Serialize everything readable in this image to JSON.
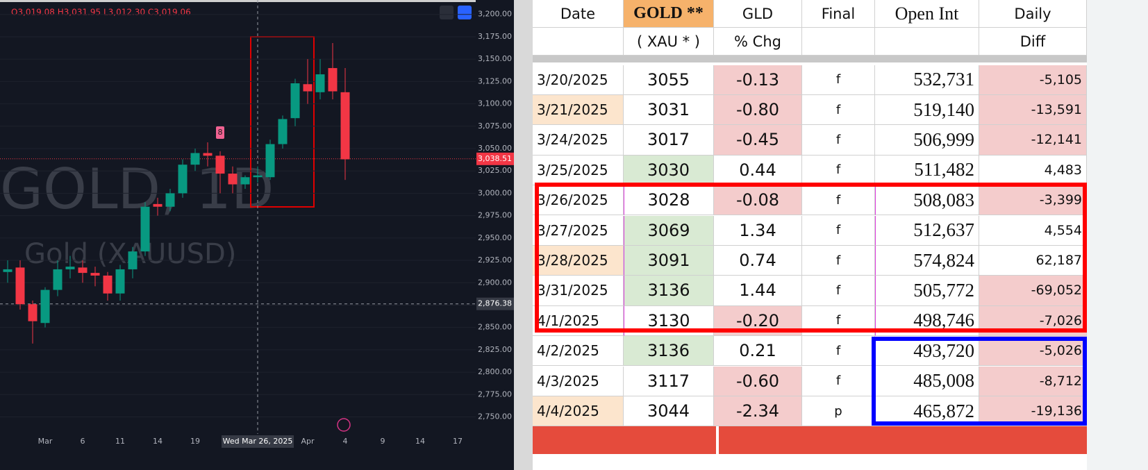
{
  "chart_data": {
    "type": "candlestick",
    "header": "O3,019.08 H3,031.95 L3,012.30 C3,019.06",
    "watermark": "GOLD, 1D",
    "watermark_sub": "Gold (XAUUSD)",
    "marker_label": "8",
    "crosshair_label": "Wed Mar 26, 2025",
    "crosshair_price": {
      "value": 2876.38,
      "label": "2,876.38"
    },
    "last_price": {
      "value": 3038.51,
      "label": "3,038.51"
    },
    "up_color": "#089981",
    "down_color": "#f23645",
    "categories": [
      null,
      null,
      null,
      "Mar",
      null,
      null,
      "6",
      null,
      null,
      "11",
      null,
      null,
      "14",
      null,
      null,
      "19",
      null,
      null,
      null,
      null,
      null,
      null,
      null,
      null,
      "Apr",
      null,
      null,
      "4",
      null,
      null,
      "9",
      null,
      null,
      "14",
      null,
      null,
      "17",
      null
    ],
    "open": [
      2912,
      2917,
      2876,
      2855,
      2892,
      2915,
      2917,
      2911,
      2908,
      2888,
      2915,
      2935,
      2988,
      2985,
      3000,
      3032,
      3045,
      3042,
      3022,
      3010,
      3018,
      3018,
      3055,
      3084,
      3122,
      3113,
      3140,
      3113,
      null,
      null,
      null,
      null,
      null,
      null,
      null,
      null,
      null,
      null
    ],
    "high": [
      2925,
      2925,
      2880,
      2895,
      2925,
      2930,
      2925,
      2918,
      2912,
      2920,
      2940,
      2990,
      2995,
      3005,
      3038,
      3050,
      3057,
      3047,
      3030,
      3020,
      3030,
      3060,
      3087,
      3128,
      3150,
      3150,
      3168,
      3140,
      null,
      null,
      null,
      null,
      null,
      null,
      null,
      null,
      null,
      null
    ],
    "low": [
      2900,
      2870,
      2832,
      2850,
      2885,
      2905,
      2900,
      2896,
      2880,
      2880,
      2905,
      2930,
      2975,
      2980,
      2995,
      3025,
      3030,
      3000,
      3000,
      3005,
      3012,
      3015,
      3050,
      3075,
      3100,
      3105,
      3105,
      3015,
      null,
      null,
      null,
      null,
      null,
      null,
      null,
      null,
      null,
      null
    ],
    "close": [
      2915,
      2876,
      2857,
      2892,
      2915,
      2918,
      2911,
      2908,
      2888,
      2915,
      2935,
      2985,
      2985,
      3000,
      3032,
      3045,
      3042,
      3022,
      3010,
      3018,
      3020,
      3055,
      3083,
      3123,
      3114,
      3133,
      3114,
      3038,
      null,
      null,
      null,
      null,
      null,
      null,
      null,
      null,
      null,
      null
    ],
    "ylim": [
      2731,
      3213
    ],
    "yticks": [
      {
        "value": 3200,
        "label": "3,200.00"
      },
      {
        "value": 3175,
        "label": "3,175.00"
      },
      {
        "value": 3150,
        "label": "3,150.00"
      },
      {
        "value": 3125,
        "label": "3,125.00"
      },
      {
        "value": 3100,
        "label": "3,100.00"
      },
      {
        "value": 3075,
        "label": "3,075.00"
      },
      {
        "value": 3050,
        "label": "3,050.00"
      },
      {
        "value": 3025,
        "label": "3,025.00"
      },
      {
        "value": 3000,
        "label": "3,000.00"
      },
      {
        "value": 2975,
        "label": "2,975.00"
      },
      {
        "value": 2950,
        "label": "2,950.00"
      },
      {
        "value": 2925,
        "label": "2,925.00"
      },
      {
        "value": 2900,
        "label": "2,900.00"
      },
      {
        "value": 2875,
        "label": "2,875.00"
      },
      {
        "value": 2850,
        "label": "2,850.00"
      },
      {
        "value": 2825,
        "label": "2,825.00"
      },
      {
        "value": 2800,
        "label": "2,800.00"
      },
      {
        "value": 2775,
        "label": "2,775.00"
      },
      {
        "value": 2750,
        "label": "2,750.00"
      }
    ]
  },
  "table": {
    "columns": [
      {
        "top": "Date"
      },
      {
        "top": "GOLD **",
        "bottom": "( XAU * )"
      },
      {
        "top": "GLD",
        "bottom": "% Chg"
      },
      {
        "top": "Final"
      },
      {
        "top": "Open Int"
      },
      {
        "top": "Daily",
        "bottom": "Diff"
      }
    ],
    "header_fills": [
      "#ffffff",
      "#f6b26b",
      "#ffffff",
      "#ffffff",
      "#ffffff",
      "#ffffff"
    ],
    "rows": [
      [
        "3/20/2025",
        "3055",
        "-0.13",
        "f",
        "532,731",
        "-5,105"
      ],
      [
        "3/21/2025",
        "3031",
        "-0.80",
        "f",
        "519,140",
        "-13,591"
      ],
      [
        "3/24/2025",
        "3017",
        "-0.45",
        "f",
        "506,999",
        "-12,141"
      ],
      [
        "3/25/2025",
        "3030",
        "0.44",
        "f",
        "511,482",
        "4,483"
      ],
      [
        "3/26/2025",
        "3028",
        "-0.08",
        "f",
        "508,083",
        "-3,399"
      ],
      [
        "3/27/2025",
        "3069",
        "1.34",
        "f",
        "512,637",
        "4,554"
      ],
      [
        "3/28/2025",
        "3091",
        "0.74",
        "f",
        "574,824",
        "62,187"
      ],
      [
        "3/31/2025",
        "3136",
        "1.44",
        "f",
        "505,772",
        "-69,052"
      ],
      [
        "4/1/2025",
        "3130",
        "-0.20",
        "f",
        "498,746",
        "-7,026"
      ],
      [
        "4/2/2025",
        "3136",
        "0.21",
        "f",
        "493,720",
        "-5,026"
      ],
      [
        "4/3/2025",
        "3117",
        "-0.60",
        "f",
        "485,008",
        "-8,712"
      ],
      [
        "4/4/2025",
        "3044",
        "-2.34",
        "p",
        "465,872",
        "-19,136"
      ]
    ],
    "fills": [
      [
        "#fff",
        "#fff",
        "#f4cccc",
        "#fff",
        "#fff",
        "#f4cccc"
      ],
      [
        "#fce5cd",
        "#fff",
        "#f4cccc",
        "#fff",
        "#fff",
        "#f4cccc"
      ],
      [
        "#fff",
        "#fff",
        "#f4cccc",
        "#fff",
        "#fff",
        "#f4cccc"
      ],
      [
        "#fff",
        "#d9ead3",
        "#fff",
        "#fff",
        "#fff",
        "#fff"
      ],
      [
        "#fff",
        "#fff",
        "#f4cccc",
        "#fff",
        "#fff",
        "#f4cccc"
      ],
      [
        "#fff",
        "#d9ead3",
        "#fff",
        "#fff",
        "#fff",
        "#fff"
      ],
      [
        "#fce5cd",
        "#d9ead3",
        "#fff",
        "#fff",
        "#fff",
        "#fff"
      ],
      [
        "#fff",
        "#d9ead3",
        "#fff",
        "#fff",
        "#fff",
        "#f4cccc"
      ],
      [
        "#fff",
        "#fff",
        "#f4cccc",
        "#fff",
        "#fff",
        "#f4cccc"
      ],
      [
        "#fff",
        "#d9ead3",
        "#fff",
        "#fff",
        "#fff",
        "#f4cccc"
      ],
      [
        "#fff",
        "#fff",
        "#f4cccc",
        "#fff",
        "#fff",
        "#f4cccc"
      ],
      [
        "#fce5cd",
        "#fff",
        "#f4cccc",
        "#fff",
        "#fff",
        "#f4cccc"
      ]
    ]
  }
}
